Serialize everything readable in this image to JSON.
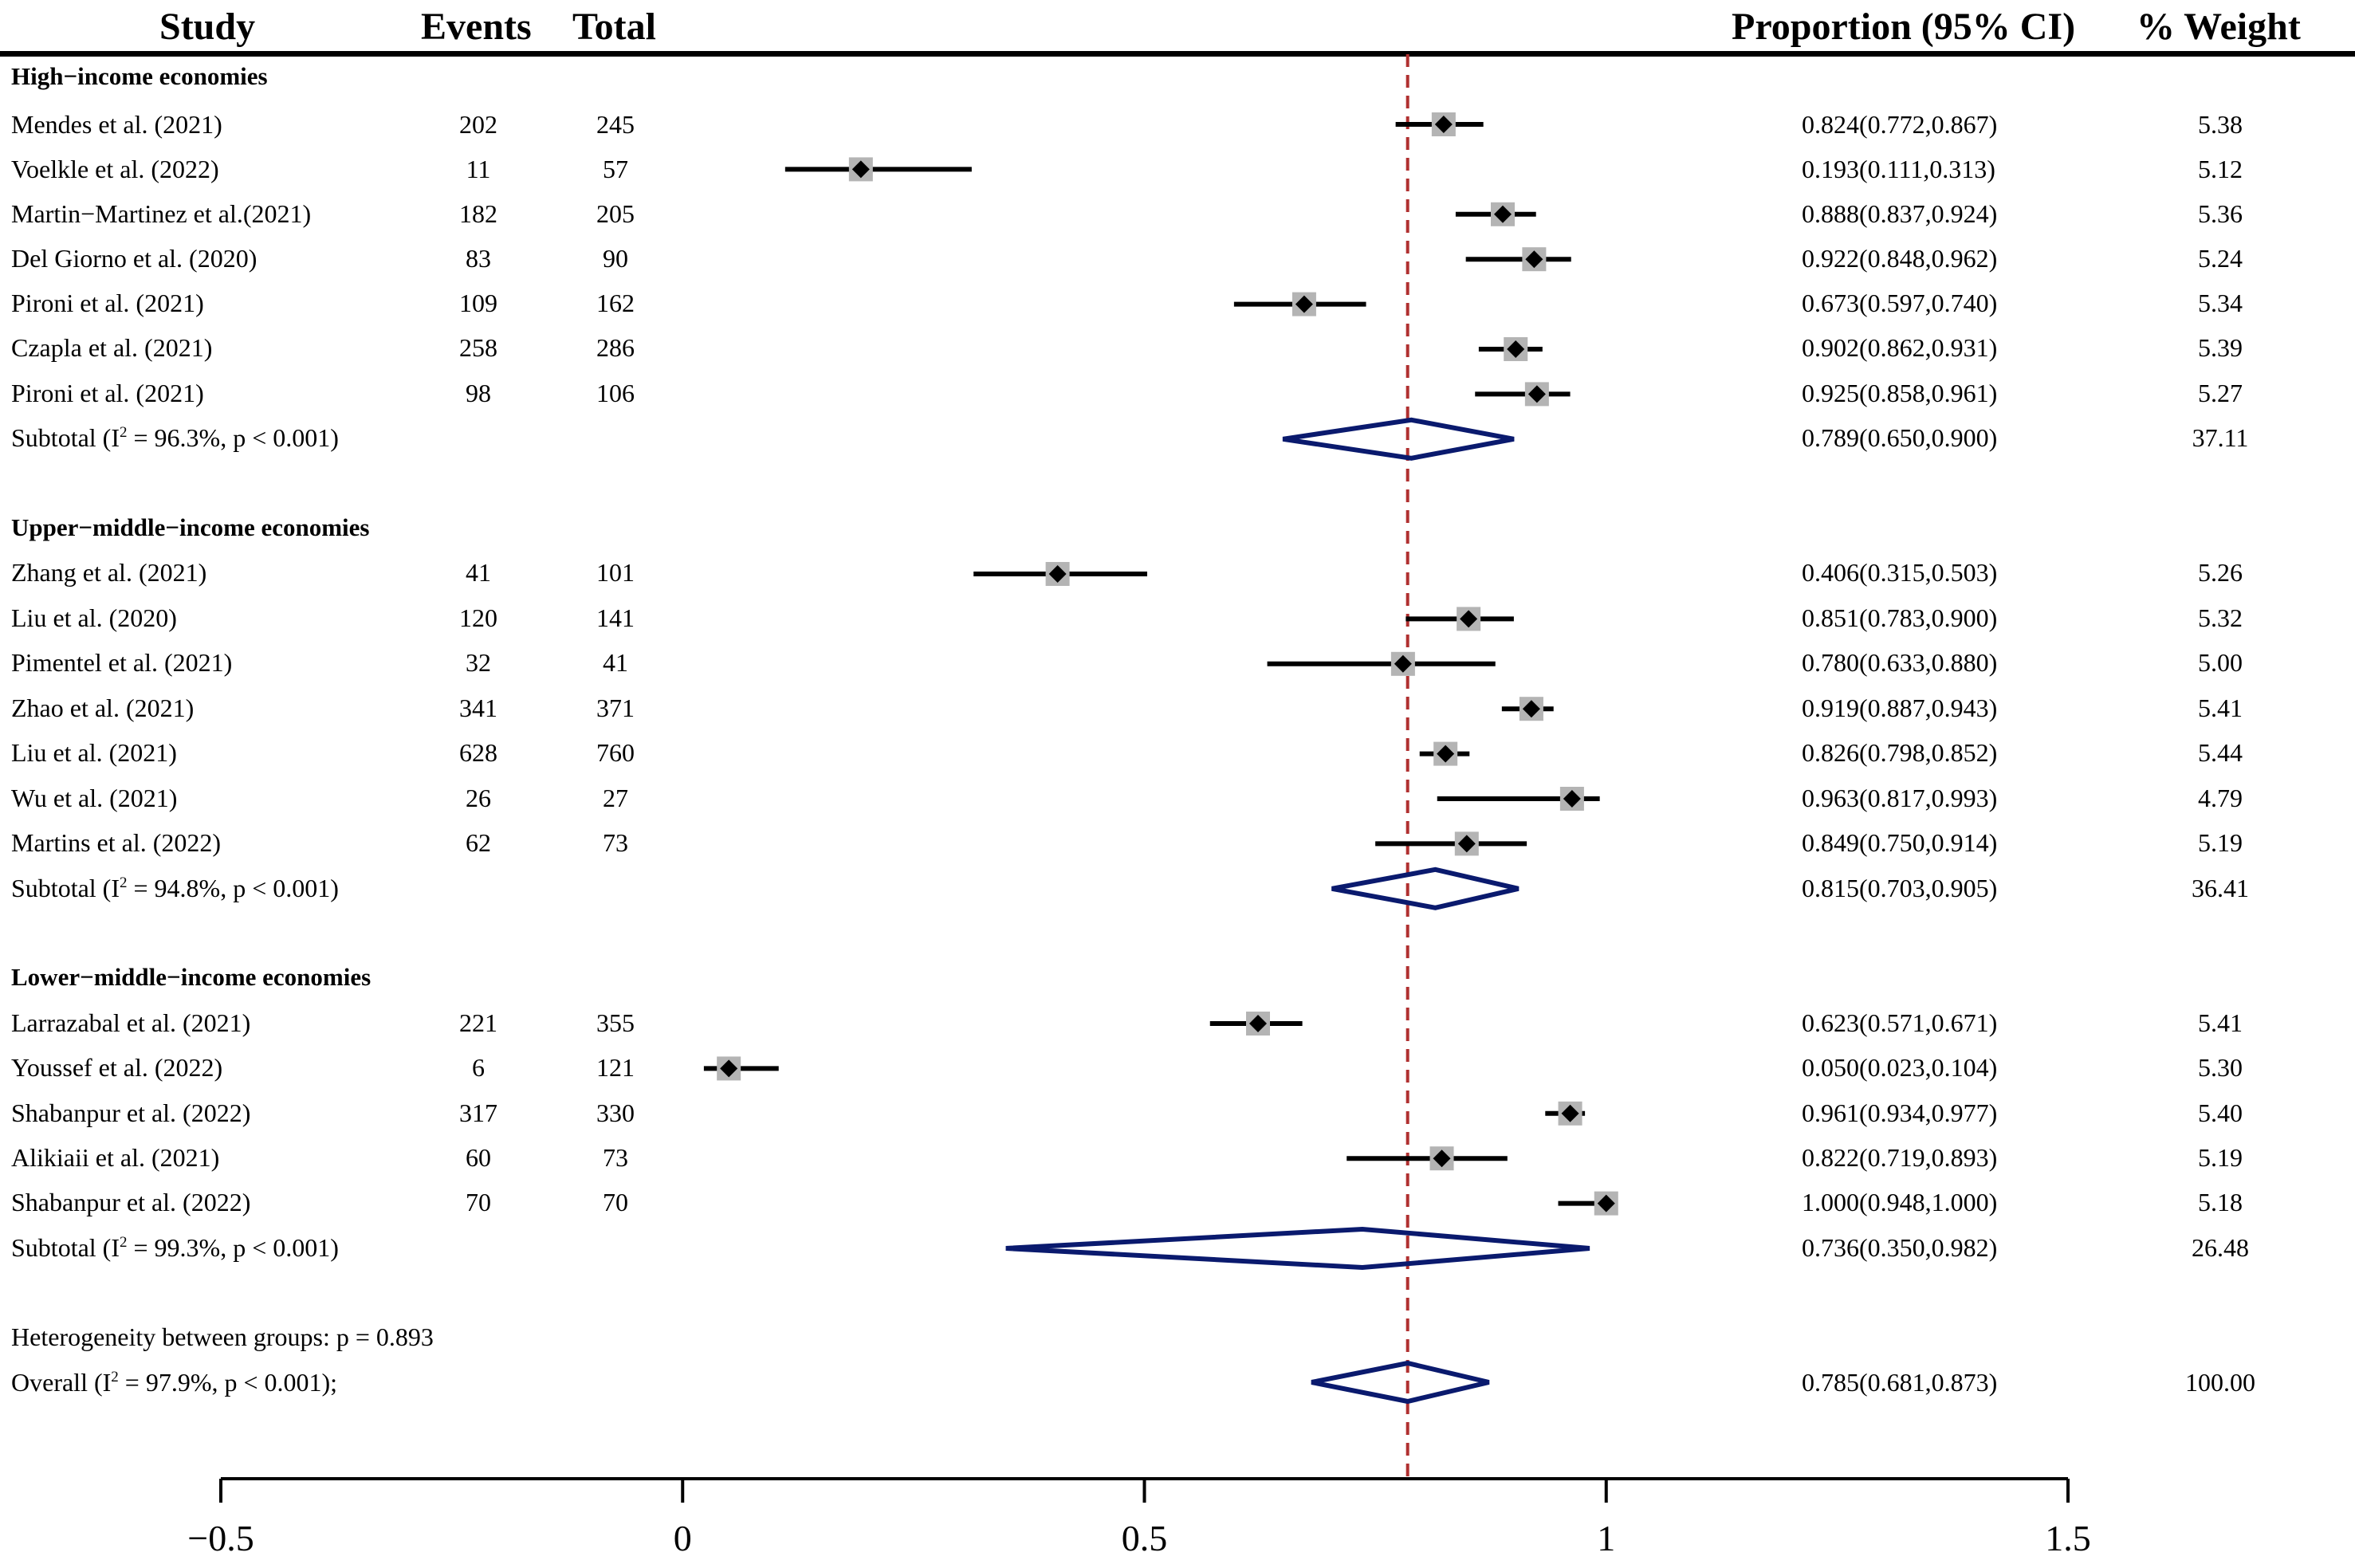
{
  "headers": {
    "study": "Study",
    "events": "Events",
    "total": "Total",
    "proportion": "Proportion (95% CI)",
    "weight": "% Weight"
  },
  "groups": [
    {
      "name": "High−income economies",
      "studies": [
        {
          "study": "Mendes et al. (2021)",
          "events": "202",
          "total": "245",
          "ci_text": "0.824(0.772,0.867)",
          "weight": "5.38"
        },
        {
          "study": "Voelkle et al. (2022)",
          "events": "11",
          "total": "57",
          "ci_text": "0.193(0.111,0.313)",
          "weight": "5.12"
        },
        {
          "study": "Martin−Martinez et al.(2021)",
          "events": "182",
          "total": "205",
          "ci_text": "0.888(0.837,0.924)",
          "weight": "5.36"
        },
        {
          "study": "Del Giorno et al. (2020)",
          "events": "83",
          "total": "90",
          "ci_text": "0.922(0.848,0.962)",
          "weight": "5.24"
        },
        {
          "study": "Pironi et al. (2021)",
          "events": "109",
          "total": "162",
          "ci_text": "0.673(0.597,0.740)",
          "weight": "5.34"
        },
        {
          "study": "Czapla et al. (2021)",
          "events": "258",
          "total": "286",
          "ci_text": "0.902(0.862,0.931)",
          "weight": "5.39"
        },
        {
          "study": "Pironi et al. (2021)",
          "events": "98",
          "total": "106",
          "ci_text": "0.925(0.858,0.961)",
          "weight": "5.27"
        }
      ],
      "subtotal": {
        "label": "Subtotal (I",
        "i2_p": " = 96.3%, p < 0.001)",
        "ci_text": "0.789(0.650,0.900)",
        "weight": "37.11"
      }
    },
    {
      "name": "Upper−middle−income economies",
      "studies": [
        {
          "study": "Zhang et al. (2021)",
          "events": "41",
          "total": "101",
          "ci_text": "0.406(0.315,0.503)",
          "weight": "5.26"
        },
        {
          "study": "Liu et al. (2020)",
          "events": "120",
          "total": "141",
          "ci_text": "0.851(0.783,0.900)",
          "weight": "5.32"
        },
        {
          "study": "Pimentel et al. (2021)",
          "events": "32",
          "total": "41",
          "ci_text": "0.780(0.633,0.880)",
          "weight": "5.00"
        },
        {
          "study": "Zhao et al. (2021)",
          "events": "341",
          "total": "371",
          "ci_text": "0.919(0.887,0.943)",
          "weight": "5.41"
        },
        {
          "study": "Liu et al. (2021)",
          "events": "628",
          "total": "760",
          "ci_text": "0.826(0.798,0.852)",
          "weight": "5.44"
        },
        {
          "study": "Wu et al. (2021)",
          "events": "26",
          "total": "27",
          "ci_text": "0.963(0.817,0.993)",
          "weight": "4.79"
        },
        {
          "study": "Martins et al. (2022)",
          "events": "62",
          "total": "73",
          "ci_text": "0.849(0.750,0.914)",
          "weight": "5.19"
        }
      ],
      "subtotal": {
        "label": "Subtotal (I",
        "i2_p": " = 94.8%, p < 0.001)",
        "ci_text": "0.815(0.703,0.905)",
        "weight": "36.41"
      }
    },
    {
      "name": "Lower−middle−income economies",
      "studies": [
        {
          "study": "Larrazabal et al. (2021)",
          "events": "221",
          "total": "355",
          "ci_text": "0.623(0.571,0.671)",
          "weight": "5.41"
        },
        {
          "study": "Youssef et al. (2022)",
          "events": "6",
          "total": "121",
          "ci_text": "0.050(0.023,0.104)",
          "weight": "5.30"
        },
        {
          "study": "Shabanpur et al. (2022)",
          "events": "317",
          "total": "330",
          "ci_text": "0.961(0.934,0.977)",
          "weight": "5.40"
        },
        {
          "study": "Alikiaii et al. (2021)",
          "events": "60",
          "total": "73",
          "ci_text": "0.822(0.719,0.893)",
          "weight": "5.19"
        },
        {
          "study": "Shabanpur et al. (2022)",
          "events": "70",
          "total": "70",
          "ci_text": "1.000(0.948,1.000)",
          "weight": "5.18"
        }
      ],
      "subtotal": {
        "label": "Subtotal (I",
        "i2_p": " = 99.3%, p < 0.001)",
        "ci_text": "0.736(0.350,0.982)",
        "weight": "26.48"
      }
    }
  ],
  "heterogeneity": "Heterogeneity between groups: p = 0.893",
  "overall": {
    "label": "Overall (I",
    "i2_p": " = 97.9%, p < 0.001);",
    "ci_text": "0.785(0.681,0.873)",
    "weight": "100.00"
  },
  "sup2": "2",
  "chart_data": {
    "type": "forest",
    "title": "",
    "xlabel": "",
    "ylabel": "",
    "xlim": [
      -0.5,
      1.5
    ],
    "x_ticks": [
      -0.5,
      0,
      0.5,
      1,
      1.5
    ],
    "x_tick_labels": [
      "−0.5",
      "0",
      "0.5",
      "1",
      "1.5"
    ],
    "reference_line": 0.785,
    "studies": [
      {
        "group": 0,
        "est": 0.824,
        "lo": 0.772,
        "hi": 0.867
      },
      {
        "group": 0,
        "est": 0.193,
        "lo": 0.111,
        "hi": 0.313
      },
      {
        "group": 0,
        "est": 0.888,
        "lo": 0.837,
        "hi": 0.924
      },
      {
        "group": 0,
        "est": 0.922,
        "lo": 0.848,
        "hi": 0.962
      },
      {
        "group": 0,
        "est": 0.673,
        "lo": 0.597,
        "hi": 0.74
      },
      {
        "group": 0,
        "est": 0.902,
        "lo": 0.862,
        "hi": 0.931
      },
      {
        "group": 0,
        "est": 0.925,
        "lo": 0.858,
        "hi": 0.961
      },
      {
        "group": 1,
        "est": 0.406,
        "lo": 0.315,
        "hi": 0.503
      },
      {
        "group": 1,
        "est": 0.851,
        "lo": 0.783,
        "hi": 0.9
      },
      {
        "group": 1,
        "est": 0.78,
        "lo": 0.633,
        "hi": 0.88
      },
      {
        "group": 1,
        "est": 0.919,
        "lo": 0.887,
        "hi": 0.943
      },
      {
        "group": 1,
        "est": 0.826,
        "lo": 0.798,
        "hi": 0.852
      },
      {
        "group": 1,
        "est": 0.963,
        "lo": 0.817,
        "hi": 0.993
      },
      {
        "group": 1,
        "est": 0.849,
        "lo": 0.75,
        "hi": 0.914
      },
      {
        "group": 2,
        "est": 0.623,
        "lo": 0.571,
        "hi": 0.671
      },
      {
        "group": 2,
        "est": 0.05,
        "lo": 0.023,
        "hi": 0.104
      },
      {
        "group": 2,
        "est": 0.961,
        "lo": 0.934,
        "hi": 0.977
      },
      {
        "group": 2,
        "est": 0.822,
        "lo": 0.719,
        "hi": 0.893
      },
      {
        "group": 2,
        "est": 1.0,
        "lo": 0.948,
        "hi": 1.0
      }
    ],
    "subtotals": [
      {
        "group": 0,
        "est": 0.789,
        "lo": 0.65,
        "hi": 0.9
      },
      {
        "group": 1,
        "est": 0.815,
        "lo": 0.703,
        "hi": 0.905
      },
      {
        "group": 2,
        "est": 0.736,
        "lo": 0.35,
        "hi": 0.982
      }
    ],
    "overall": {
      "est": 0.785,
      "lo": 0.681,
      "hi": 0.873
    },
    "colors": {
      "diamond": "#0a1a6e",
      "reference_line": "#b03030",
      "square": "#b4b4b4",
      "marker": "#000000"
    }
  }
}
